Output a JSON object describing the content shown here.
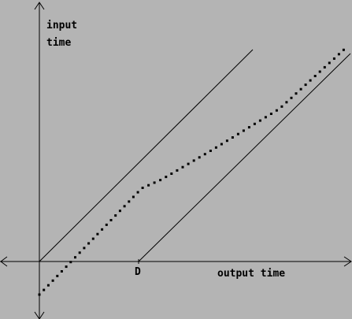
{
  "labels": {
    "y_axis_line1": "input",
    "y_axis_line2": "time",
    "x_axis": "output time",
    "delay_tick": "D"
  },
  "chart_data": {
    "type": "line",
    "xlabel": "output time",
    "ylabel": "input time",
    "annotations": [
      "D"
    ]
  },
  "colors": {
    "background": "#b4b4b4",
    "ink": "#000000"
  }
}
